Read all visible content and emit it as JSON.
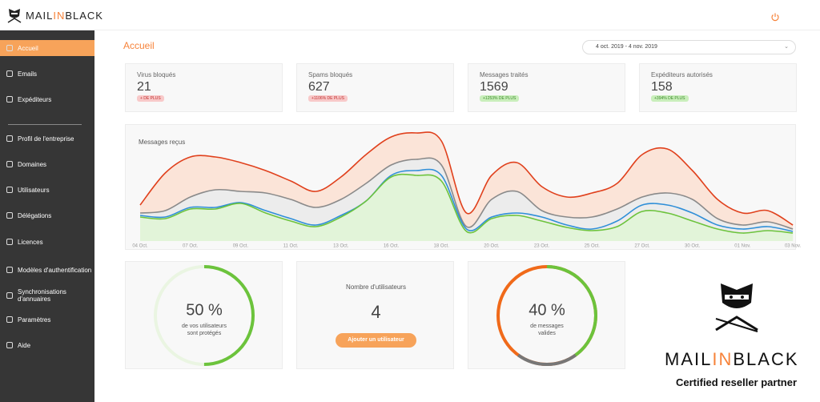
{
  "header": {
    "logo": [
      "MAIL",
      "IN",
      "BLACK"
    ]
  },
  "sidebar": {
    "items": [
      "Accueil",
      "Emails",
      "Expéditeurs",
      "Profil de l'entreprise",
      "Domaines",
      "Utilisateurs",
      "Délégations",
      "Licences",
      "Modèles d'authentification",
      "Synchronisations d'annuaires",
      "Paramètres",
      "Aide"
    ]
  },
  "page": {
    "title": "Accueil",
    "date_range": "4 oct. 2019 - 4 nov. 2019"
  },
  "kpis": [
    {
      "label": "Virus bloqués",
      "value": "21",
      "badge": "+ DE PLUS"
    },
    {
      "label": "Spams bloqués",
      "value": "627",
      "badge": "+1106% DE PLUS"
    },
    {
      "label": "Messages traités",
      "value": "1569",
      "badge": "+1253% DE PLUS"
    },
    {
      "label": "Expéditeurs autorisés",
      "value": "158",
      "badge": "+394% DE PLUS"
    }
  ],
  "chart_data": {
    "type": "area",
    "title": "Messages reçus",
    "categories": [
      "04 Oct.",
      null,
      "07 Oct.",
      null,
      "09 Oct.",
      null,
      "11 Oct.",
      null,
      "13 Oct.",
      null,
      "16 Oct.",
      null,
      "18 Oct.",
      null,
      "20 Oct.",
      null,
      "23 Oct.",
      null,
      "25 Oct.",
      null,
      "27 Oct.",
      null,
      "30 Oct.",
      null,
      "01 Nov.",
      null,
      "03 Nov."
    ],
    "ylim": [
      0,
      140
    ],
    "series": [
      {
        "color": "#e0401c",
        "fill": "#fbe4d8",
        "values": [
          45,
          85,
          105,
          105,
          98,
          88,
          75,
          62,
          80,
          108,
          130,
          135,
          125,
          35,
          82,
          98,
          68,
          55,
          60,
          72,
          108,
          115,
          88,
          52,
          35,
          38,
          20
        ]
      },
      {
        "color": "#8a8a8a",
        "fill": "#ececec",
        "values": [
          35,
          38,
          55,
          64,
          62,
          60,
          52,
          42,
          52,
          72,
          95,
          102,
          95,
          18,
          52,
          62,
          38,
          30,
          30,
          40,
          55,
          60,
          52,
          28,
          20,
          24,
          15
        ]
      },
      {
        "color": "#2f8fd8",
        "fill": "none",
        "values": [
          32,
          30,
          42,
          42,
          48,
          38,
          28,
          20,
          32,
          50,
          82,
          88,
          82,
          15,
          30,
          35,
          30,
          20,
          15,
          25,
          45,
          45,
          35,
          20,
          15,
          18,
          12
        ]
      },
      {
        "color": "#6cc33c",
        "fill": "#e2f4d9",
        "values": [
          30,
          28,
          40,
          40,
          47,
          35,
          25,
          18,
          30,
          50,
          80,
          82,
          75,
          12,
          28,
          32,
          25,
          17,
          13,
          18,
          37,
          35,
          25,
          15,
          10,
          13,
          10
        ]
      }
    ]
  },
  "gauges": [
    {
      "value": 50,
      "label": "50 %",
      "caption": [
        "de vos utilisateurs",
        "sont protégés"
      ]
    },
    {
      "value": 40,
      "label": "40 %",
      "caption": [
        "de messages",
        "valides"
      ]
    }
  ],
  "users": {
    "label": "Nombre d'utilisateurs",
    "value": "4",
    "button": "Ajouter un utilisateur"
  },
  "partner": {
    "logo": [
      "MAIL",
      "IN",
      "BLACK"
    ],
    "tagline": "Certified reseller partner"
  }
}
